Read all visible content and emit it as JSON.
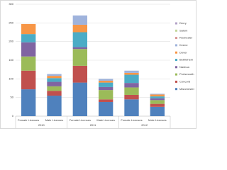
{
  "chart_data": {
    "type": "stacked-bar",
    "categories": [
      "Female Licenses",
      "Male Licenses",
      "Female Licenses",
      "Male Licenses",
      "Female Licenses",
      "Male Licenses"
    ],
    "category_groups": [
      "2010",
      "2011",
      "2012"
    ],
    "ylim": [
      0,
      300
    ],
    "yticks": [
      0,
      50,
      100,
      150,
      200,
      250,
      300
    ],
    "grid": true,
    "legend": "right",
    "series": [
      {
        "name": "Manchester",
        "color": "#4f81bd",
        "values": [
          72,
          55,
          90,
          38,
          45,
          25
        ]
      },
      {
        "name": "Concord",
        "color": "#c0504d",
        "values": [
          50,
          13,
          45,
          7,
          12,
          8
        ]
      },
      {
        "name": "Portsmouth",
        "color": "#9bbb59",
        "values": [
          38,
          12,
          45,
          25,
          20,
          10
        ]
      },
      {
        "name": "Nashua",
        "color": "#8064a2",
        "values": [
          38,
          12,
          5,
          8,
          12,
          5
        ]
      },
      {
        "name": "Bethlehem",
        "color": "#4bacc6",
        "values": [
          22,
          10,
          40,
          12,
          22,
          5
        ]
      },
      {
        "name": "Dover",
        "color": "#f79646",
        "values": [
          27,
          6,
          20,
          5,
          5,
          5
        ]
      },
      {
        "name": "Keene",
        "color": "#9fb3dc",
        "values": [
          0,
          5,
          25,
          5,
          6,
          2
        ]
      },
      {
        "name": "Rochester",
        "color": "#d99694",
        "values": [
          0,
          0,
          0,
          0,
          0,
          0
        ]
      },
      {
        "name": "Salem",
        "color": "#c3d69b",
        "values": [
          0,
          0,
          0,
          0,
          0,
          0
        ]
      },
      {
        "name": "Derry",
        "color": "#b3a2c7",
        "values": [
          0,
          0,
          0,
          0,
          0,
          0
        ]
      }
    ]
  }
}
